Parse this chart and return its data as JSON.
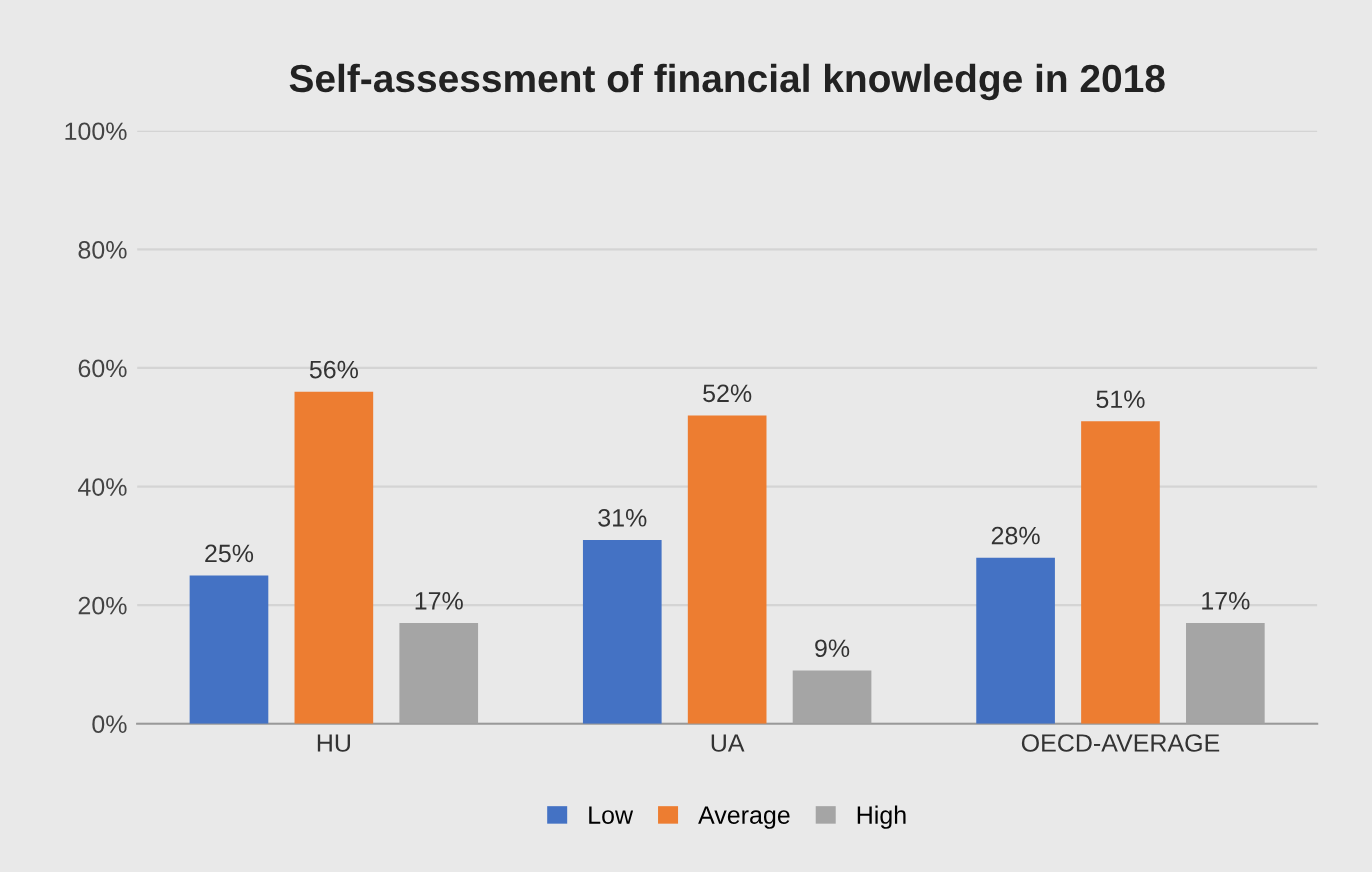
{
  "chart_data": {
    "type": "bar",
    "title": "Self-assessment of financial knowledge in 2018",
    "categories": [
      "HU",
      "UA",
      "OECD-AVERAGE"
    ],
    "series": [
      {
        "name": "Low",
        "color": "#4472c4",
        "values": [
          25,
          31,
          28
        ],
        "value_labels": [
          "25%",
          "31%",
          "28%"
        ]
      },
      {
        "name": "Average",
        "color": "#ed7d31",
        "values": [
          56,
          52,
          51
        ],
        "value_labels": [
          "56%",
          "52%",
          "51%"
        ]
      },
      {
        "name": "High",
        "color": "#a5a5a5",
        "values": [
          17,
          9,
          17
        ],
        "value_labels": [
          "17%",
          "9%",
          "17%"
        ]
      }
    ],
    "ylim": [
      0,
      100
    ],
    "yticks": [
      {
        "value": 0,
        "label": "0%"
      },
      {
        "value": 20,
        "label": "20%"
      },
      {
        "value": 40,
        "label": "40%"
      },
      {
        "value": 60,
        "label": "60%"
      },
      {
        "value": 80,
        "label": "80%"
      },
      {
        "value": 100,
        "label": "100%"
      }
    ],
    "grid": "y",
    "legend": "bottom"
  }
}
